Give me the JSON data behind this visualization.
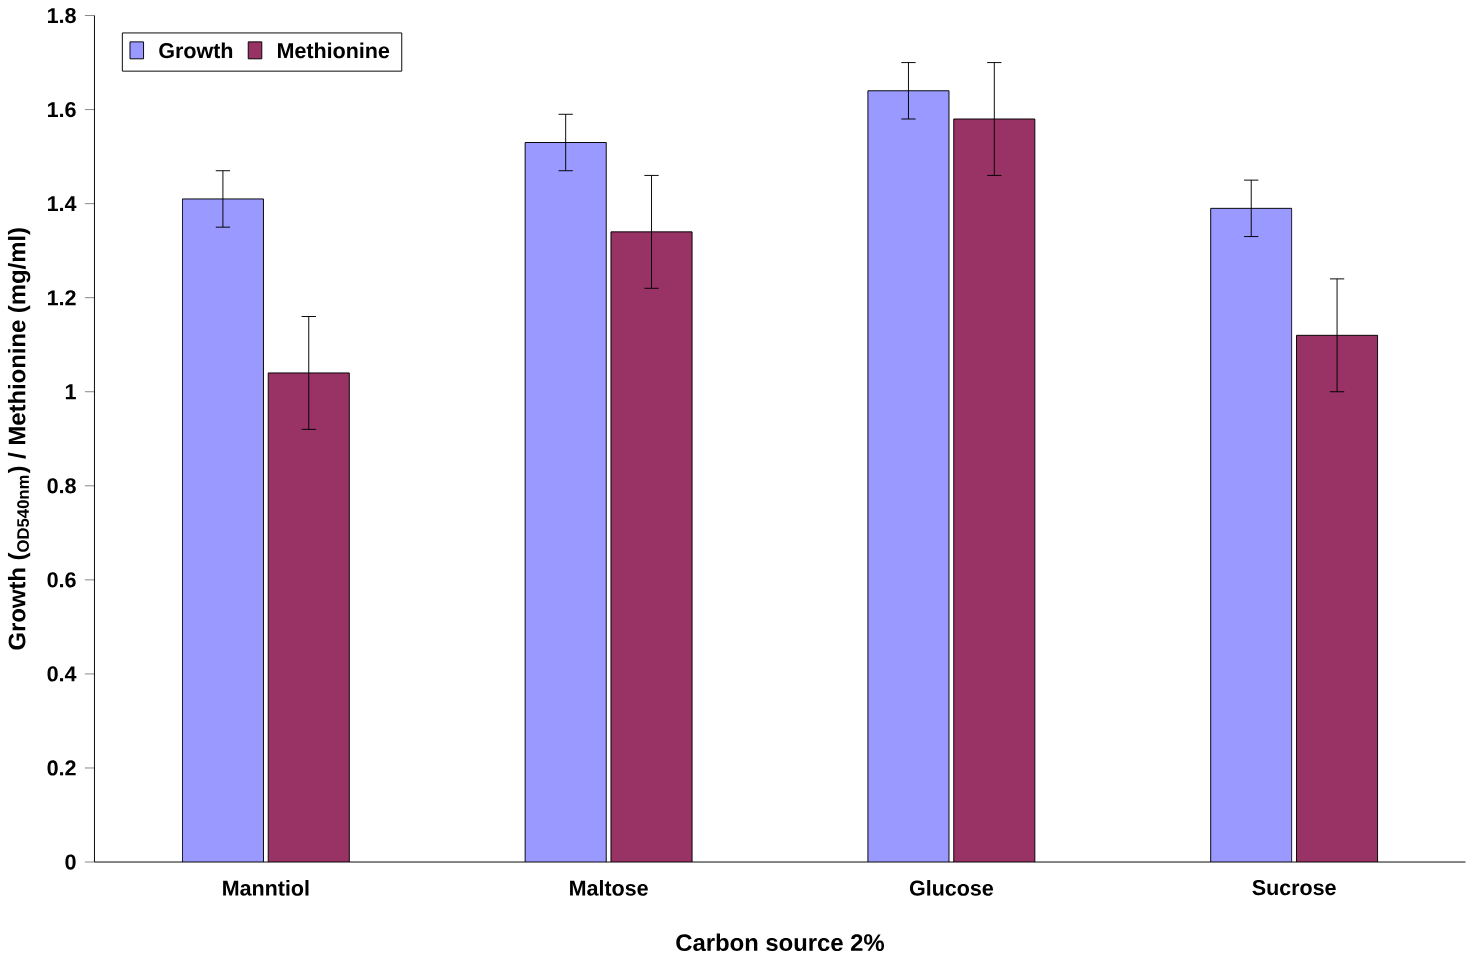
{
  "chart_data": {
    "type": "bar",
    "xlabel": "Carbon source 2%",
    "ylabel": "Growth ($_{OD540nm}$) / Methionine (mg/ml)",
    "categories": [
      "Manntiol",
      "Maltose",
      "Glucose",
      "Sucrose"
    ],
    "series": [
      {
        "name": "Growth",
        "color": "#9999ff",
        "values": [
          1.41,
          1.53,
          1.64,
          1.39
        ],
        "errors": [
          0.06,
          0.06,
          0.06,
          0.06
        ]
      },
      {
        "name": "Methionine",
        "color": "#993366",
        "values": [
          1.04,
          1.34,
          1.58,
          1.12
        ],
        "errors": [
          0.12,
          0.12,
          0.12,
          0.12
        ]
      }
    ],
    "ylim": [
      0,
      1.8
    ],
    "yticks": [
      0,
      0.2,
      0.4,
      0.6,
      0.8,
      1,
      1.2,
      1.4,
      1.6,
      1.8
    ],
    "grid": false,
    "legend": "top left"
  }
}
